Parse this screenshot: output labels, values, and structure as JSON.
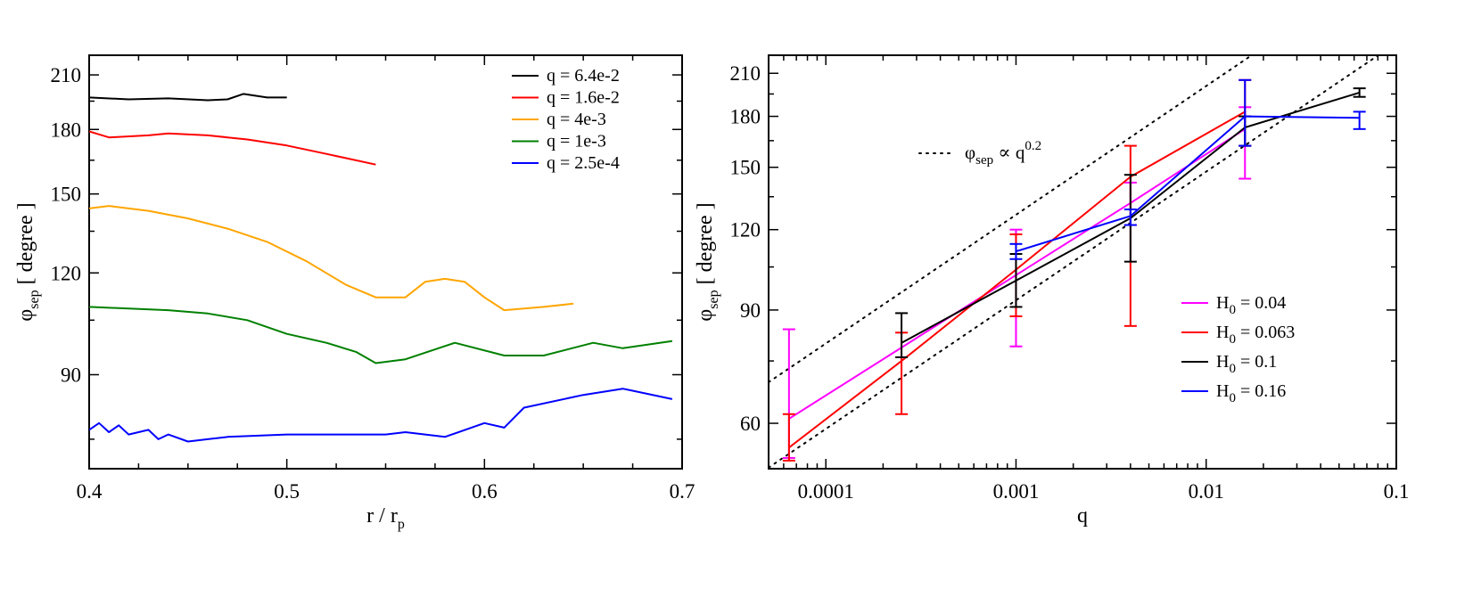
{
  "chart_data": [
    {
      "type": "line",
      "xlabel": "r / r",
      "xlabel_sub": "p",
      "ylabel": "φ",
      "ylabel_sub": "sep",
      "ylabel_unit": "[ degree ]",
      "xscale": "linear",
      "yscale": "log",
      "xlim": [
        0.4,
        0.7
      ],
      "ylim": [
        69,
        222
      ],
      "xticks": [
        0.4,
        0.5,
        0.6,
        0.7
      ],
      "xtick_labels": [
        "0.4",
        "0.5",
        "0.6",
        "0.7"
      ],
      "yticks": [
        90,
        120,
        150,
        180,
        210
      ],
      "ytick_labels": [
        "90",
        "120",
        "150",
        "180",
        "210"
      ],
      "legend_position": "top-right",
      "series": [
        {
          "name": "q = 6.4e-2",
          "color": "#000000",
          "x": [
            0.4,
            0.42,
            0.44,
            0.46,
            0.47,
            0.478,
            0.49,
            0.5
          ],
          "y": [
            197,
            196,
            196.5,
            195.5,
            196,
            199,
            197,
            197
          ]
        },
        {
          "name": "q = 1.6e-2",
          "color": "#ff0000",
          "x": [
            0.4,
            0.41,
            0.43,
            0.44,
            0.46,
            0.48,
            0.5,
            0.52,
            0.545
          ],
          "y": [
            179,
            176,
            177,
            178,
            177,
            175,
            172,
            168,
            163
          ]
        },
        {
          "name": "q = 4e-3",
          "color": "#ffa500",
          "x": [
            0.4,
            0.41,
            0.43,
            0.45,
            0.47,
            0.49,
            0.51,
            0.53,
            0.545,
            0.56,
            0.57,
            0.58,
            0.59,
            0.6,
            0.61,
            0.63,
            0.645
          ],
          "y": [
            144,
            145,
            143,
            140,
            136,
            131,
            124,
            116,
            112,
            112,
            117,
            118,
            117,
            112,
            108,
            109,
            110
          ]
        },
        {
          "name": "q = 1e-3",
          "color": "#008000",
          "x": [
            0.4,
            0.42,
            0.44,
            0.46,
            0.48,
            0.5,
            0.52,
            0.535,
            0.545,
            0.56,
            0.585,
            0.61,
            0.63,
            0.655,
            0.67,
            0.695
          ],
          "y": [
            109,
            108.5,
            108,
            107,
            105,
            101,
            98.5,
            96,
            93,
            94,
            98.5,
            95,
            95,
            98.5,
            97,
            99
          ]
        },
        {
          "name": "q = 2.5e-4",
          "color": "#0000ff",
          "x": [
            0.4,
            0.405,
            0.41,
            0.415,
            0.42,
            0.43,
            0.435,
            0.44,
            0.45,
            0.46,
            0.47,
            0.5,
            0.55,
            0.56,
            0.57,
            0.58,
            0.6,
            0.61,
            0.62,
            0.65,
            0.67,
            0.675,
            0.695
          ],
          "y": [
            77,
            78.5,
            76.5,
            78,
            76,
            77,
            75,
            76,
            74.5,
            75,
            75.5,
            76,
            76,
            76.5,
            76,
            75.5,
            78.5,
            77.5,
            82,
            85,
            86.5,
            86,
            84
          ]
        }
      ]
    },
    {
      "type": "line",
      "xlabel": "q",
      "ylabel": "φ",
      "ylabel_sub": "sep",
      "ylabel_unit": "[ degree ]",
      "xscale": "log",
      "yscale": "log",
      "xlim": [
        5e-05,
        0.1
      ],
      "ylim": [
        51,
        224
      ],
      "xticks": [
        0.0001,
        0.001,
        0.01,
        0.1
      ],
      "xtick_labels": [
        "0.0001",
        "0.001",
        "0.01",
        "0.1"
      ],
      "yticks": [
        60,
        90,
        120,
        150,
        180,
        210
      ],
      "ytick_labels": [
        "60",
        "90",
        "120",
        "150",
        "180",
        "210"
      ],
      "annotation": {
        "text": "φ",
        "sub": "sep",
        "middle": " ∝ q",
        "sup": "0.2",
        "position": "upper-left",
        "dash_style": "dotted"
      },
      "legend_position": "lower-right",
      "guides": [
        {
          "q": [
            5e-05,
            0.1
          ],
          "y": [
            69.5,
            318
          ]
        },
        {
          "q": [
            5e-05,
            0.1
          ],
          "y": [
            51.2,
            234
          ]
        }
      ],
      "series": [
        {
          "name": "H",
          "name_sub": "0",
          "name_value": " = 0.04",
          "color": "#ff00ff",
          "x": [
            6.4e-05,
            0.001,
            0.004,
            0.016
          ],
          "y": [
            61,
            102,
            132,
            172
          ],
          "err_low": [
            53,
            79,
            122,
            144
          ],
          "err_high": [
            84,
            120,
            142,
            186
          ]
        },
        {
          "name": "H",
          "name_sub": "0",
          "name_value": " = 0.063",
          "color": "#ff0000",
          "x": [
            6.4e-05,
            0.00025,
            0.001,
            0.004,
            0.016
          ],
          "y": [
            55,
            75,
            104,
            145,
            183
          ],
          "err_low": [
            52.5,
            62,
            88,
            85,
            162
          ],
          "err_high": [
            62,
            83,
            118,
            162,
            205
          ]
        },
        {
          "name": "H",
          "name_sub": "0",
          "name_value": " = 0.1",
          "color": "#000000",
          "x": [
            0.00025,
            0.001,
            0.004,
            0.016,
            0.064
          ],
          "y": [
            80,
            100,
            125,
            173,
            196
          ],
          "err_low": [
            76,
            91,
            107,
            162,
            193
          ],
          "err_high": [
            89,
            110,
            146,
            180,
            199
          ]
        },
        {
          "name": "H",
          "name_sub": "0",
          "name_value": " = 0.16",
          "color": "#0000ff",
          "x": [
            0.001,
            0.004,
            0.016,
            0.064
          ],
          "y": [
            111,
            126,
            180,
            179
          ],
          "err_low": [
            108,
            122,
            162,
            172
          ],
          "err_high": [
            114,
            129,
            205,
            183
          ]
        }
      ]
    }
  ]
}
